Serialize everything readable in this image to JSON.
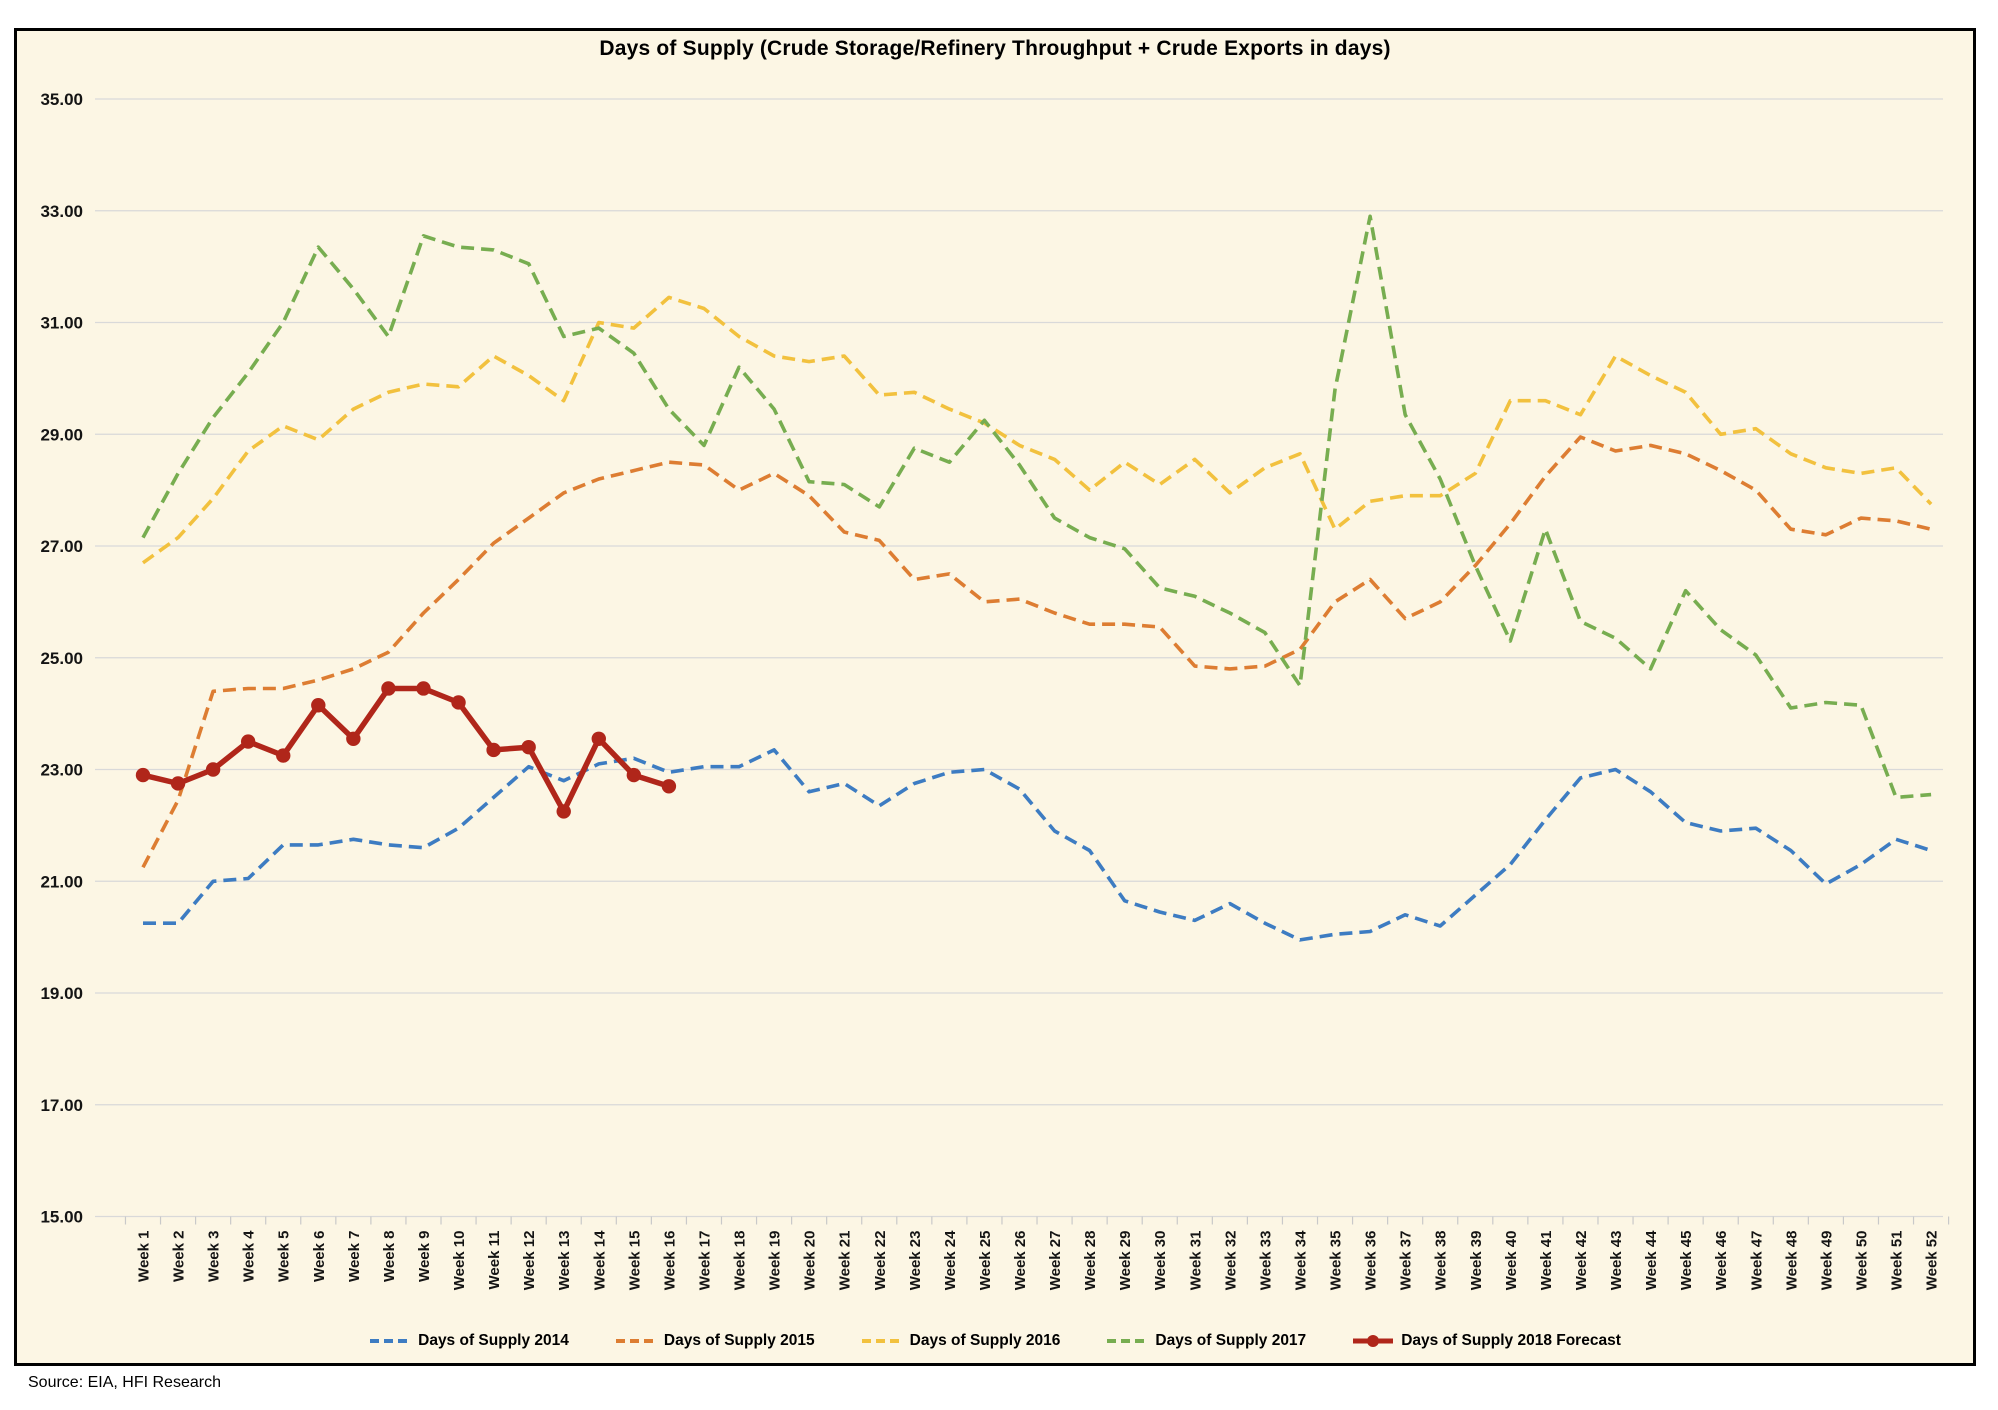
{
  "title": "Days of Supply (Crude Storage/Refinery Throughput + Crude Exports in days)",
  "source_note": "Source: EIA, HFI Research",
  "colors": {
    "background": "#FCF6E4",
    "gridline": "#D9D9D9",
    "border": "#000000",
    "text": "#141414"
  },
  "chart_data": {
    "type": "line",
    "title": "Days of Supply (Crude Storage/Refinery Throughput + Crude Exports in days)",
    "ylim": [
      15,
      35
    ],
    "y_tick_step": 2,
    "y_tick_labels": [
      "15.00",
      "17.00",
      "19.00",
      "21.00",
      "23.00",
      "25.00",
      "27.00",
      "29.00",
      "31.00",
      "33.00",
      "35.00"
    ],
    "grid": true,
    "legend_position": "bottom",
    "x_categories": [
      "Week 1",
      "Week 2",
      "Week 3",
      "Week 4",
      "Week 5",
      "Week 6",
      "Week 7",
      "Week 8",
      "Week 9",
      "Week 10",
      "Week 11",
      "Week 12",
      "Week 13",
      "Week 14",
      "Week 15",
      "Week 16",
      "Week 17",
      "Week 18",
      "Week 19",
      "Week 20",
      "Week 21",
      "Week 22",
      "Week 23",
      "Week 24",
      "Week 25",
      "Week 26",
      "Week 27",
      "Week 28",
      "Week 29",
      "Week 30",
      "Week 31",
      "Week 32",
      "Week 33",
      "Week 34",
      "Week 35",
      "Week 36",
      "Week 37",
      "Week 38",
      "Week 39",
      "Week 40",
      "Week 41",
      "Week 42",
      "Week 43",
      "Week 44",
      "Week 45",
      "Week 46",
      "Week 47",
      "Week 48",
      "Week 49",
      "Week 50",
      "Week 51",
      "Week 52"
    ],
    "series": [
      {
        "name": "Days of Supply 2014",
        "color": "#3D7CC2",
        "style": "dashed",
        "values": [
          20.25,
          20.25,
          21.0,
          21.05,
          21.65,
          21.65,
          21.75,
          21.65,
          21.6,
          21.95,
          22.5,
          23.05,
          22.8,
          23.1,
          23.2,
          22.95,
          23.05,
          23.05,
          23.35,
          22.6,
          22.75,
          22.35,
          22.75,
          22.95,
          23.0,
          22.65,
          21.9,
          21.55,
          20.65,
          20.45,
          20.3,
          20.6,
          20.25,
          19.95,
          20.05,
          20.1,
          20.4,
          20.2,
          20.75,
          21.3,
          22.1,
          22.85,
          23.0,
          22.6,
          22.05,
          21.9,
          21.95,
          21.55,
          20.95,
          21.3,
          21.75,
          21.55
        ]
      },
      {
        "name": "Days of Supply 2015",
        "color": "#DD7D32",
        "style": "dashed",
        "values": [
          21.25,
          22.45,
          24.4,
          24.45,
          24.45,
          24.6,
          24.8,
          25.1,
          25.8,
          26.4,
          27.05,
          27.5,
          27.95,
          28.2,
          28.35,
          28.5,
          28.45,
          28.0,
          28.3,
          27.9,
          27.25,
          27.1,
          26.4,
          26.5,
          26.0,
          26.05,
          25.8,
          25.6,
          25.6,
          25.55,
          24.85,
          24.8,
          24.85,
          25.15,
          26.0,
          26.4,
          25.7,
          26.0,
          26.65,
          27.4,
          28.25,
          28.95,
          28.7,
          28.8,
          28.65,
          28.35,
          28.0,
          27.3,
          27.2,
          27.5,
          27.45,
          27.3
        ]
      },
      {
        "name": "Days of Supply 2016",
        "color": "#F2C13E",
        "style": "dashed",
        "values": [
          26.7,
          27.15,
          27.85,
          28.7,
          29.15,
          28.9,
          29.45,
          29.75,
          29.9,
          29.85,
          30.4,
          30.05,
          29.6,
          31.0,
          30.9,
          31.45,
          31.25,
          30.75,
          30.4,
          30.3,
          30.4,
          29.7,
          29.75,
          29.45,
          29.2,
          28.8,
          28.55,
          28.0,
          28.5,
          28.1,
          28.55,
          27.95,
          28.4,
          28.65,
          27.3,
          27.8,
          27.9,
          27.9,
          28.3,
          29.6,
          29.6,
          29.35,
          30.4,
          30.05,
          29.75,
          29.0,
          29.1,
          28.65,
          28.4,
          28.3,
          28.4,
          27.75
        ]
      },
      {
        "name": "Days of Supply 2017",
        "color": "#77AD50",
        "style": "dashed",
        "values": [
          27.15,
          28.3,
          29.3,
          30.1,
          31.0,
          32.35,
          31.6,
          30.75,
          32.55,
          32.35,
          32.3,
          32.05,
          30.75,
          30.9,
          30.45,
          29.45,
          28.8,
          30.2,
          29.45,
          28.15,
          28.1,
          27.7,
          28.75,
          28.5,
          29.25,
          28.45,
          27.5,
          27.15,
          26.95,
          26.25,
          26.1,
          25.8,
          25.45,
          24.5,
          29.8,
          32.9,
          29.35,
          28.2,
          26.65,
          25.3,
          27.3,
          25.65,
          25.35,
          24.8,
          26.2,
          25.5,
          25.05,
          24.1,
          24.2,
          24.15,
          22.5,
          22.55
        ]
      },
      {
        "name": "Days of Supply 2018 Forecast",
        "color": "#B0261A",
        "style": "solid-marker",
        "values": [
          22.9,
          22.75,
          23.0,
          23.5,
          23.25,
          24.15,
          23.55,
          24.45,
          24.45,
          24.2,
          23.35,
          23.4,
          22.25,
          23.55,
          22.9,
          22.7
        ]
      }
    ]
  }
}
